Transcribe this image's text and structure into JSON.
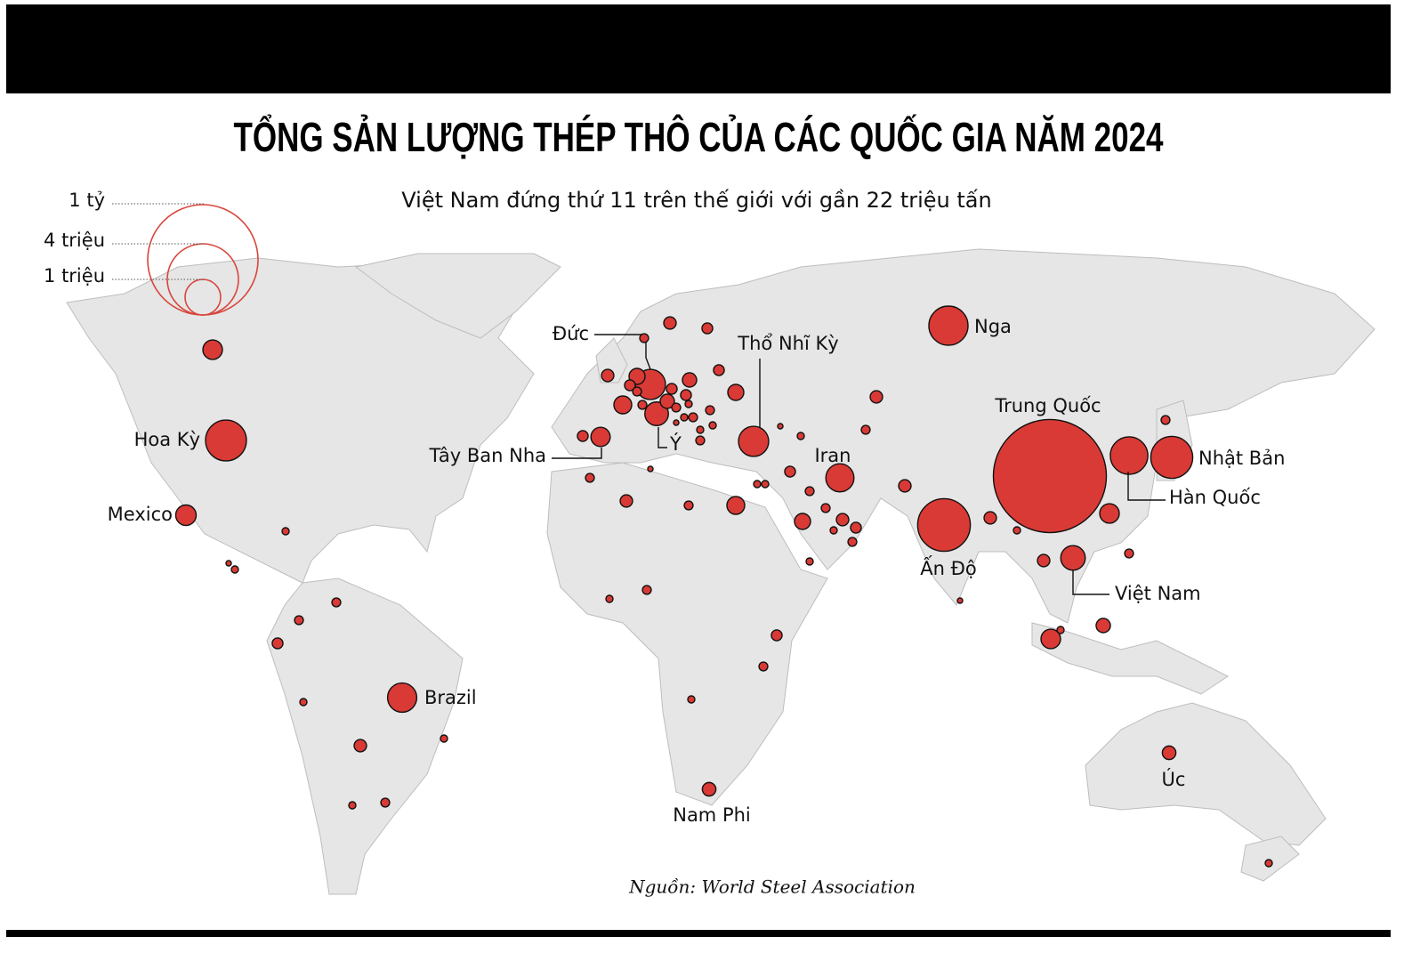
{
  "header": {
    "title": "TỔNG SẢN LƯỢNG THÉP THÔ CỦA CÁC QUỐC GIA NĂM 2024",
    "subtitle": "Việt Nam đứng thứ 11 trên thế giới với gần 22 triệu tấn"
  },
  "legend": [
    "1 tỷ",
    "4 triệu",
    "1 triệu"
  ],
  "bubbles": [
    {
      "name": "Trung Quốc",
      "value": 1005
    },
    {
      "name": "Ấn Độ",
      "value": 149
    },
    {
      "name": "Nhật Bản",
      "value": 84
    },
    {
      "name": "Hoa Kỳ",
      "value": 79
    },
    {
      "name": "Nga",
      "value": 71
    },
    {
      "name": "Hàn Quốc",
      "value": 64
    },
    {
      "name": "Đức",
      "value": 37
    },
    {
      "name": "Thổ Nhĩ Kỳ",
      "value": 37
    },
    {
      "name": "Brazil",
      "value": 34
    },
    {
      "name": "Iran",
      "value": 31
    },
    {
      "name": "Việt Nam",
      "value": 22
    },
    {
      "name": "Ý",
      "value": 20
    },
    {
      "name": "Mexico",
      "value": 14
    },
    {
      "name": "Tây Ban Nha",
      "value": 12
    },
    {
      "name": "Nam Phi",
      "value": 5
    },
    {
      "name": "Úc",
      "value": 5
    },
    {
      "value": 12.5
    },
    {
      "value": 4
    },
    {
      "value": 2.8
    },
    {
      "value": 1.7
    },
    {
      "value": 4
    },
    {
      "value": 7.6
    },
    {
      "value": 2.8
    },
    {
      "value": 1.7
    },
    {
      "value": 5.7
    },
    {
      "value": 2.8
    },
    {
      "value": 7.6
    },
    {
      "value": 2.8
    },
    {
      "value": 2.8
    },
    {
      "value": 5.7
    },
    {
      "value": 9.9
    },
    {
      "value": 1.7
    },
    {
      "value": 1.7
    },
    {
      "value": 1
    },
    {
      "value": 1.7
    },
    {
      "value": 1.7
    },
    {
      "value": 1
    },
    {
      "value": 0.5
    },
    {
      "value": 1
    },
    {
      "value": 1
    },
    {
      "value": 1.7
    },
    {
      "value": 2.8
    },
    {
      "value": 0.5
    },
    {
      "value": 1
    },
    {
      "value": 4
    },
    {
      "value": 1.7
    },
    {
      "value": 2.8
    },
    {
      "value": 1
    },
    {
      "value": 1
    },
    {
      "value": 1.7
    },
    {
      "value": 1.7
    },
    {
      "value": 4
    },
    {
      "value": 2.8
    },
    {
      "value": 7.6
    },
    {
      "value": 1
    },
    {
      "value": 1.7
    },
    {
      "value": 1
    },
    {
      "value": 9.9
    },
    {
      "value": 1.7
    },
    {
      "value": 4
    },
    {
      "value": 1.7
    },
    {
      "value": 0.5
    },
    {
      "value": 4
    },
    {
      "value": 4
    },
    {
      "value": 1
    },
    {
      "value": 12.5
    },
    {
      "value": 1.7
    },
    {
      "value": 4
    },
    {
      "value": 1.7
    },
    {
      "value": 12.5
    },
    {
      "value": 1
    },
    {
      "value": 5.7
    },
    {
      "value": 0.5
    },
    {
      "value": 2.8
    },
    {
      "value": 1.7
    },
    {
      "value": 1
    },
    {
      "value": 1.7
    },
    {
      "value": 1
    },
    {
      "value": 1
    },
    {
      "value": 1
    },
    {
      "value": 0.5
    },
    {
      "value": 1
    },
    {
      "value": 1.7
    },
    {
      "value": 1.7
    },
    {
      "value": 2.8
    },
    {
      "value": 1
    },
    {
      "value": 1
    },
    {
      "value": 4
    },
    {
      "value": 1
    },
    {
      "value": 1.7
    }
  ],
  "source": "Nguồn: World Steel Association"
}
